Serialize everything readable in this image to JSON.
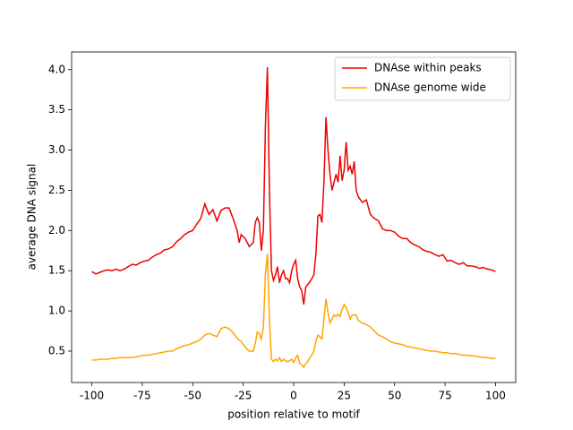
{
  "chart_data": {
    "type": "line",
    "xlabel": "position relative to motif",
    "ylabel": "average DNA signal",
    "x": [
      -100,
      -98,
      -96,
      -94,
      -92,
      -90,
      -88,
      -86,
      -84,
      -82,
      -80,
      -78,
      -76,
      -74,
      -72,
      -70,
      -68,
      -66,
      -64,
      -62,
      -60,
      -58,
      -56,
      -54,
      -52,
      -50,
      -48,
      -46,
      -44,
      -42,
      -40,
      -38,
      -36,
      -34,
      -32,
      -30,
      -28,
      -27,
      -26,
      -24,
      -22,
      -20,
      -19,
      -18,
      -17,
      -16,
      -15,
      -14,
      -13,
      -12,
      -11,
      -10,
      -9,
      -8,
      -7,
      -6,
      -5,
      -4,
      -3,
      -2,
      -1,
      0,
      1,
      2,
      3,
      4,
      5,
      6,
      7,
      8,
      9,
      10,
      11,
      12,
      13,
      14,
      15,
      16,
      17,
      18,
      19,
      20,
      21,
      22,
      23,
      24,
      25,
      26,
      27,
      28,
      29,
      30,
      31,
      32,
      34,
      36,
      38,
      40,
      42,
      44,
      46,
      48,
      50,
      52,
      54,
      56,
      58,
      60,
      62,
      64,
      66,
      68,
      70,
      72,
      74,
      76,
      78,
      80,
      82,
      84,
      86,
      88,
      90,
      92,
      94,
      96,
      98,
      100
    ],
    "series": [
      {
        "name": "DNAse within peaks",
        "color": "#ee0000",
        "values": [
          1.49,
          1.46,
          1.48,
          1.5,
          1.51,
          1.5,
          1.52,
          1.5,
          1.52,
          1.55,
          1.58,
          1.57,
          1.6,
          1.62,
          1.63,
          1.67,
          1.7,
          1.72,
          1.76,
          1.77,
          1.8,
          1.86,
          1.9,
          1.95,
          1.98,
          2.0,
          2.08,
          2.15,
          2.33,
          2.2,
          2.26,
          2.12,
          2.25,
          2.28,
          2.28,
          2.15,
          2.0,
          1.85,
          1.95,
          1.9,
          1.8,
          1.85,
          2.1,
          2.16,
          2.1,
          1.75,
          2.0,
          3.3,
          4.03,
          2.5,
          1.5,
          1.38,
          1.45,
          1.55,
          1.35,
          1.45,
          1.5,
          1.4,
          1.4,
          1.35,
          1.5,
          1.58,
          1.63,
          1.4,
          1.3,
          1.25,
          1.08,
          1.3,
          1.33,
          1.36,
          1.4,
          1.45,
          1.7,
          2.18,
          2.2,
          2.1,
          2.6,
          3.41,
          3.0,
          2.7,
          2.5,
          2.6,
          2.7,
          2.6,
          2.93,
          2.62,
          2.75,
          3.1,
          2.75,
          2.8,
          2.7,
          2.86,
          2.5,
          2.42,
          2.35,
          2.38,
          2.2,
          2.15,
          2.12,
          2.02,
          2.0,
          2.0,
          1.98,
          1.93,
          1.9,
          1.9,
          1.85,
          1.82,
          1.8,
          1.76,
          1.74,
          1.73,
          1.7,
          1.68,
          1.7,
          1.62,
          1.63,
          1.6,
          1.58,
          1.6,
          1.56,
          1.56,
          1.55,
          1.53,
          1.54,
          1.52,
          1.51,
          1.49
        ]
      },
      {
        "name": "DNAse genome wide",
        "color": "#ffa500",
        "values": [
          0.39,
          0.39,
          0.4,
          0.4,
          0.4,
          0.41,
          0.41,
          0.42,
          0.42,
          0.42,
          0.42,
          0.43,
          0.44,
          0.45,
          0.45,
          0.46,
          0.47,
          0.48,
          0.49,
          0.5,
          0.5,
          0.53,
          0.55,
          0.57,
          0.58,
          0.6,
          0.62,
          0.65,
          0.7,
          0.72,
          0.7,
          0.68,
          0.78,
          0.8,
          0.78,
          0.73,
          0.66,
          0.64,
          0.62,
          0.55,
          0.5,
          0.5,
          0.6,
          0.74,
          0.72,
          0.65,
          0.8,
          1.45,
          1.71,
          0.9,
          0.4,
          0.37,
          0.4,
          0.38,
          0.42,
          0.37,
          0.4,
          0.38,
          0.37,
          0.38,
          0.4,
          0.36,
          0.42,
          0.45,
          0.35,
          0.33,
          0.3,
          0.35,
          0.37,
          0.42,
          0.45,
          0.5,
          0.62,
          0.7,
          0.68,
          0.65,
          0.9,
          1.15,
          0.98,
          0.85,
          0.9,
          0.95,
          0.93,
          0.96,
          0.93,
          1.02,
          1.08,
          1.04,
          0.98,
          0.9,
          0.95,
          0.95,
          0.95,
          0.88,
          0.85,
          0.83,
          0.8,
          0.75,
          0.7,
          0.68,
          0.65,
          0.62,
          0.6,
          0.59,
          0.58,
          0.56,
          0.55,
          0.54,
          0.53,
          0.52,
          0.51,
          0.5,
          0.5,
          0.49,
          0.48,
          0.48,
          0.47,
          0.47,
          0.46,
          0.45,
          0.45,
          0.44,
          0.44,
          0.43,
          0.42,
          0.42,
          0.41,
          0.41
        ]
      }
    ],
    "xlim": [
      -110,
      110
    ],
    "ylim": [
      0.11,
      4.22
    ],
    "xticks": [
      -100,
      -75,
      -50,
      -25,
      0,
      25,
      50,
      75,
      100
    ],
    "yticks": [
      0.5,
      {
        "value": 1,
        "label": "1.0"
      },
      1.5,
      {
        "value": 2,
        "label": "2.0"
      },
      2.5,
      {
        "value": 3,
        "label": "3.0"
      },
      3.5,
      {
        "value": 4,
        "label": "4.0"
      }
    ],
    "legend": "upper right"
  }
}
